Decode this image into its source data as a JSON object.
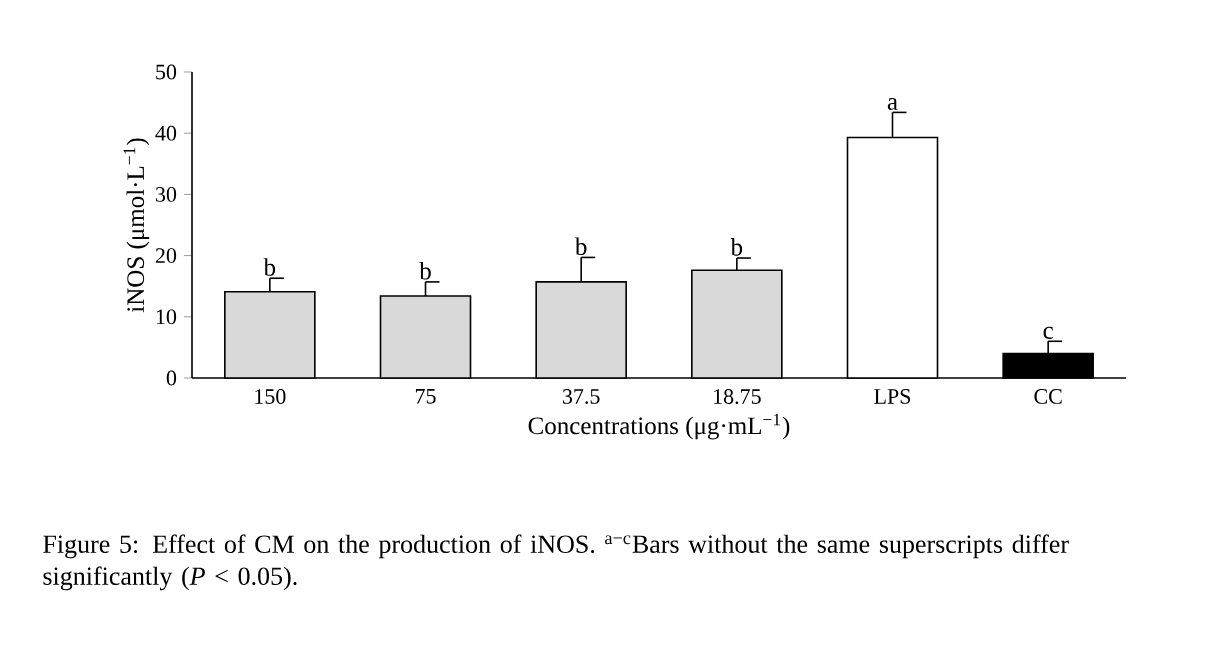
{
  "chart_data": {
    "type": "bar",
    "categories": [
      "150",
      "75",
      "37.5",
      "18.75",
      "LPS",
      "CC"
    ],
    "values": [
      14.1,
      13.4,
      15.7,
      17.6,
      39.3,
      4.0
    ],
    "colors": [
      "#d9d9d9",
      "#d9d9d9",
      "#d9d9d9",
      "#d9d9d9",
      "#ffffff",
      "#000000"
    ],
    "errors": [
      [
        14.1,
        16.3
      ],
      [
        13.4,
        15.7
      ],
      [
        15.7,
        19.7
      ],
      [
        17.6,
        19.6
      ],
      [
        39.3,
        43.4
      ],
      [
        4.0,
        6.0
      ]
    ],
    "xlabel": "Concentrations (μg·mL$^{−1}$)",
    "ylabel": "iNOS (μmol·L$^{−1}$)",
    "ylim": [
      0,
      50
    ],
    "yticks": [
      0,
      10,
      20,
      30,
      40,
      50
    ],
    "grid": false,
    "annotations": [
      {
        "text": "b",
        "x": "150",
        "y": 16.3
      },
      {
        "text": "b",
        "x": "75",
        "y": 15.7
      },
      {
        "text": "b",
        "x": "37.5",
        "y": 19.7
      },
      {
        "text": "b",
        "x": "18.75",
        "y": 19.6
      },
      {
        "text": "a",
        "x": "LPS",
        "y": 43.4
      },
      {
        "text": "c",
        "x": "CC",
        "y": 6.0
      },
      "Figure 5: Effect of CM on the production of iNOS. $^{a−c}$Bars without the same superscripts differ significantly (*P* < 0.05)."
    ]
  }
}
